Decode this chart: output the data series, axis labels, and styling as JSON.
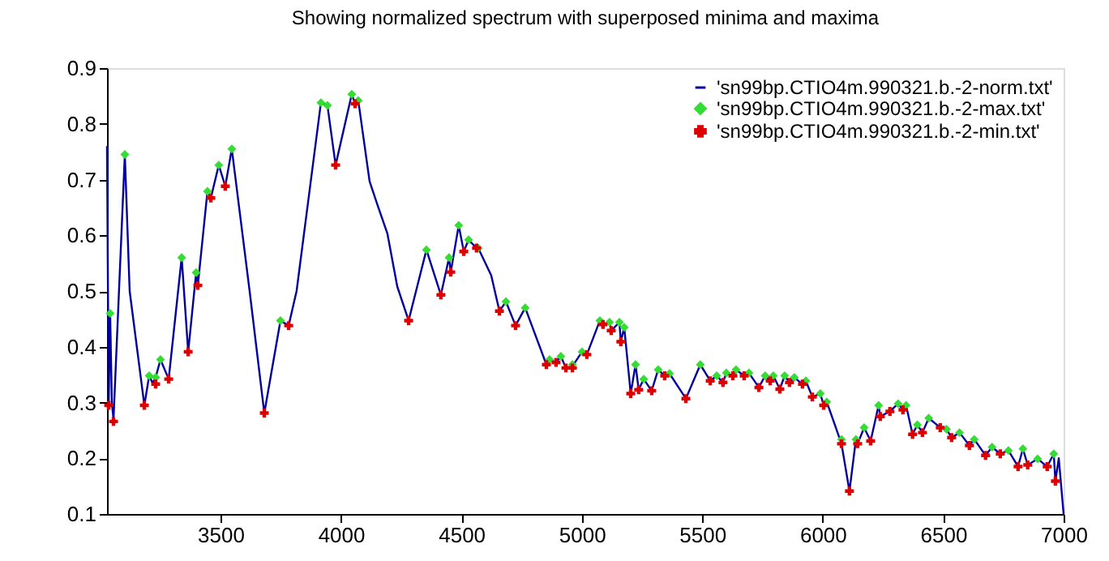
{
  "chart_data": {
    "type": "line",
    "title": "Showing normalized spectrum with superposed minima and maxima",
    "xlim": [
      3029,
      7000
    ],
    "xticks": [
      3500,
      4000,
      4500,
      5000,
      5500,
      6000,
      6500,
      7000
    ],
    "ylim": [
      0.1,
      0.9
    ],
    "yticks": [
      0.1,
      0.2,
      0.3,
      0.4,
      0.5,
      0.6,
      0.7,
      0.8,
      0.9
    ],
    "legend": "top right",
    "series": [
      {
        "name": "'sn99bp.CTIO4m.990321.b.-2-norm.txt'",
        "type": "line",
        "color": "#0000a0",
        "marker": "none",
        "line_style": "solid",
        "x": [
          3029,
          3036,
          3042,
          3049,
          3056,
          3103,
          3123,
          3184,
          3204,
          3218,
          3231,
          3251,
          3285,
          3339,
          3366,
          3399,
          3406,
          3446,
          3460,
          3493,
          3520,
          3547,
          3621,
          3682,
          3749,
          3783,
          3816,
          3917,
          3944,
          3978,
          4045,
          4059,
          4072,
          4119,
          4153,
          4193,
          4234,
          4281,
          4355,
          4415,
          4449,
          4456,
          4489,
          4510,
          4530,
          4563,
          4570,
          4624,
          4658,
          4685,
          4725,
          4765,
          4853,
          4866,
          4893,
          4913,
          4934,
          4961,
          5001,
          5021,
          5075,
          5088,
          5115,
          5122,
          5156,
          5162,
          5176,
          5203,
          5223,
          5236,
          5257,
          5290,
          5317,
          5344,
          5364,
          5432,
          5492,
          5533,
          5560,
          5586,
          5600,
          5627,
          5640,
          5674,
          5694,
          5735,
          5761,
          5782,
          5795,
          5822,
          5842,
          5862,
          5882,
          5916,
          5930,
          5957,
          5990,
          6004,
          6017,
          6078,
          6111,
          6138,
          6145,
          6172,
          6199,
          6232,
          6239,
          6279,
          6313,
          6333,
          6346,
          6373,
          6393,
          6414,
          6440,
          6488,
          6514,
          6535,
          6568,
          6609,
          6629,
          6676,
          6703,
          6737,
          6771,
          6811,
          6831,
          6851,
          6892,
          6932,
          6959,
          6966,
          6980,
          7000
        ],
        "values": [
          0.76,
          0.3,
          0.46,
          0.3,
          0.27,
          0.745,
          0.5,
          0.295,
          0.348,
          0.335,
          0.345,
          0.377,
          0.342,
          0.56,
          0.391,
          0.533,
          0.51,
          0.679,
          0.667,
          0.726,
          0.688,
          0.755,
          0.5,
          0.281,
          0.447,
          0.438,
          0.5,
          0.838,
          0.833,
          0.726,
          0.853,
          0.836,
          0.842,
          0.697,
          0.653,
          0.603,
          0.508,
          0.447,
          0.574,
          0.493,
          0.56,
          0.534,
          0.618,
          0.571,
          0.592,
          0.577,
          0.577,
          0.528,
          0.464,
          0.481,
          0.438,
          0.47,
          0.368,
          0.377,
          0.372,
          0.383,
          0.362,
          0.365,
          0.391,
          0.386,
          0.447,
          0.44,
          0.444,
          0.429,
          0.444,
          0.409,
          0.435,
          0.316,
          0.368,
          0.323,
          0.342,
          0.321,
          0.359,
          0.348,
          0.352,
          0.307,
          0.368,
          0.339,
          0.348,
          0.336,
          0.353,
          0.348,
          0.359,
          0.348,
          0.353,
          0.327,
          0.348,
          0.339,
          0.348,
          0.324,
          0.348,
          0.336,
          0.345,
          0.333,
          0.339,
          0.31,
          0.316,
          0.295,
          0.301,
          0.226,
          0.141,
          0.234,
          0.226,
          0.255,
          0.231,
          0.295,
          0.275,
          0.284,
          0.298,
          0.287,
          0.295,
          0.243,
          0.26,
          0.246,
          0.272,
          0.255,
          0.252,
          0.237,
          0.246,
          0.223,
          0.234,
          0.205,
          0.22,
          0.208,
          0.214,
          0.185,
          0.217,
          0.188,
          0.199,
          0.185,
          0.208,
          0.159,
          0.2,
          0.1
        ]
      },
      {
        "name": "'sn99bp.CTIO4m.990321.b.-2-max.txt'",
        "type": "scatter",
        "color": "#33dd33",
        "marker": "diamond",
        "x": [
          3042,
          3103,
          3204,
          3231,
          3251,
          3339,
          3399,
          3446,
          3493,
          3547,
          3749,
          3917,
          3944,
          4045,
          4072,
          4355,
          4449,
          4489,
          4530,
          4570,
          4685,
          4765,
          4866,
          4913,
          4961,
          5001,
          5075,
          5115,
          5156,
          5176,
          5223,
          5257,
          5317,
          5364,
          5492,
          5560,
          5600,
          5640,
          5694,
          5761,
          5795,
          5842,
          5882,
          5930,
          5990,
          6017,
          6078,
          6138,
          6172,
          6232,
          6313,
          6346,
          6393,
          6440,
          6514,
          6568,
          6629,
          6703,
          6771,
          6831,
          6892,
          6959
        ],
        "values": [
          0.46,
          0.745,
          0.348,
          0.345,
          0.377,
          0.56,
          0.533,
          0.679,
          0.726,
          0.755,
          0.447,
          0.838,
          0.833,
          0.853,
          0.842,
          0.574,
          0.56,
          0.618,
          0.592,
          0.577,
          0.481,
          0.47,
          0.377,
          0.383,
          0.368,
          0.391,
          0.447,
          0.444,
          0.444,
          0.435,
          0.368,
          0.342,
          0.359,
          0.352,
          0.368,
          0.348,
          0.353,
          0.359,
          0.353,
          0.348,
          0.348,
          0.348,
          0.345,
          0.339,
          0.316,
          0.301,
          0.234,
          0.234,
          0.255,
          0.295,
          0.298,
          0.295,
          0.26,
          0.272,
          0.252,
          0.246,
          0.234,
          0.22,
          0.214,
          0.217,
          0.199,
          0.208
        ]
      },
      {
        "name": "'sn99bp.CTIO4m.990321.b.-2-min.txt'",
        "type": "scatter",
        "color": "#dd0000",
        "marker": "cross",
        "x": [
          3036,
          3056,
          3184,
          3231,
          3285,
          3366,
          3406,
          3460,
          3520,
          3682,
          3783,
          3978,
          4059,
          4281,
          4415,
          4456,
          4510,
          4563,
          4658,
          4725,
          4853,
          4893,
          4934,
          4961,
          5021,
          5088,
          5122,
          5162,
          5203,
          5236,
          5290,
          5344,
          5432,
          5533,
          5586,
          5627,
          5674,
          5735,
          5782,
          5822,
          5862,
          5916,
          5957,
          6004,
          6078,
          6111,
          6145,
          6199,
          6239,
          6279,
          6333,
          6373,
          6414,
          6488,
          6535,
          6609,
          6676,
          6737,
          6811,
          6851,
          6932,
          6966
        ],
        "values": [
          0.295,
          0.266,
          0.295,
          0.333,
          0.342,
          0.391,
          0.51,
          0.667,
          0.688,
          0.281,
          0.438,
          0.726,
          0.836,
          0.447,
          0.493,
          0.534,
          0.571,
          0.577,
          0.464,
          0.438,
          0.368,
          0.372,
          0.362,
          0.362,
          0.386,
          0.44,
          0.429,
          0.409,
          0.316,
          0.323,
          0.321,
          0.348,
          0.307,
          0.339,
          0.336,
          0.348,
          0.348,
          0.327,
          0.339,
          0.324,
          0.336,
          0.333,
          0.31,
          0.295,
          0.226,
          0.141,
          0.226,
          0.231,
          0.275,
          0.284,
          0.287,
          0.243,
          0.246,
          0.255,
          0.237,
          0.223,
          0.205,
          0.208,
          0.185,
          0.188,
          0.185,
          0.159
        ]
      }
    ]
  }
}
